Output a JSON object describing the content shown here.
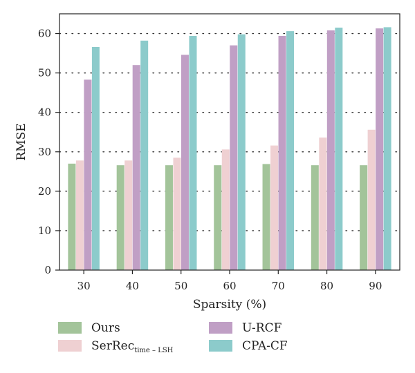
{
  "chart_data": {
    "type": "bar",
    "title": "",
    "xlabel": "Sparsity (%)",
    "ylabel": "RMSE",
    "categories": [
      "30",
      "40",
      "50",
      "60",
      "70",
      "80",
      "90"
    ],
    "ylim": [
      0,
      65
    ],
    "yticks": [
      0,
      10,
      20,
      30,
      40,
      50,
      60
    ],
    "grid": "horizontal dotted",
    "legend_position": "bottom",
    "series": [
      {
        "name": "Ours",
        "color": "#a3c49a",
        "values": [
          27.0,
          26.6,
          26.6,
          26.6,
          26.9,
          26.6,
          26.6
        ]
      },
      {
        "name": "SerRec",
        "name_subscript": "time – LSH",
        "color": "#efd0d2",
        "values": [
          27.8,
          27.8,
          28.5,
          30.6,
          31.6,
          33.6,
          35.6
        ]
      },
      {
        "name": "U-RCF",
        "color": "#c09fc5",
        "values": [
          48.3,
          52.0,
          54.6,
          57.0,
          59.4,
          60.8,
          61.3
        ]
      },
      {
        "name": "CPA-CF",
        "color": "#8ccbcb",
        "values": [
          56.6,
          58.2,
          59.4,
          59.8,
          60.6,
          61.5,
          61.6
        ]
      }
    ]
  }
}
